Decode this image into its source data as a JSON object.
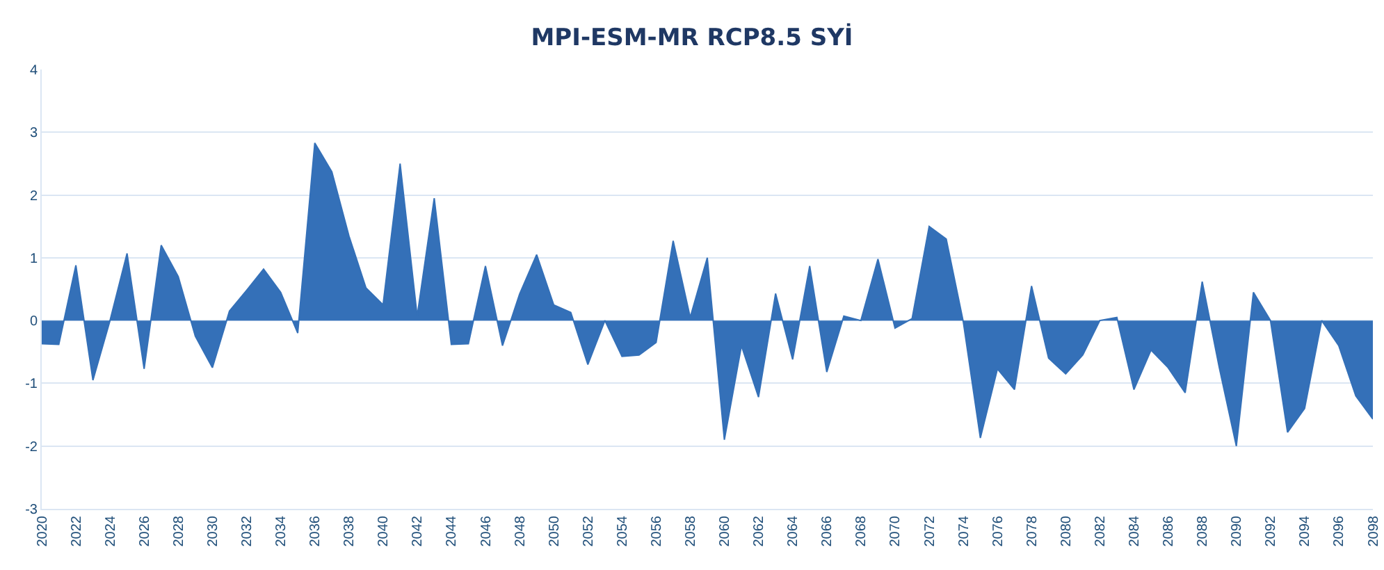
{
  "chart_data": {
    "type": "area",
    "title": "MPI-ESM-MR RCP8.5 SYİ",
    "x": [
      2020,
      2021,
      2022,
      2023,
      2024,
      2025,
      2026,
      2027,
      2028,
      2029,
      2030,
      2031,
      2032,
      2033,
      2034,
      2035,
      2036,
      2037,
      2038,
      2039,
      2040,
      2041,
      2042,
      2043,
      2044,
      2045,
      2046,
      2047,
      2048,
      2049,
      2050,
      2051,
      2052,
      2053,
      2054,
      2055,
      2056,
      2057,
      2058,
      2059,
      2060,
      2061,
      2062,
      2063,
      2064,
      2065,
      2066,
      2067,
      2068,
      2069,
      2070,
      2071,
      2072,
      2073,
      2074,
      2075,
      2076,
      2077,
      2078,
      2079,
      2080,
      2081,
      2082,
      2083,
      2084,
      2085,
      2086,
      2087,
      2088,
      2089,
      2090,
      2091,
      2092,
      2093,
      2094,
      2095,
      2096,
      2097,
      2098
    ],
    "series": [
      {
        "color": "#3470b8",
        "values": [
          -0.37,
          -0.38,
          0.88,
          -0.95,
          0.0,
          1.07,
          -0.77,
          1.2,
          0.7,
          -0.25,
          -0.75,
          0.15,
          0.48,
          0.82,
          0.45,
          -0.2,
          2.83,
          2.37,
          1.35,
          0.52,
          0.25,
          2.5,
          0.07,
          1.95,
          -0.38,
          -0.37,
          0.87,
          -0.4,
          0.42,
          1.05,
          0.25,
          0.13,
          -0.7,
          0.0,
          -0.57,
          -0.55,
          -0.35,
          1.27,
          0.05,
          1.0,
          -1.9,
          -0.4,
          -1.22,
          0.43,
          -0.62,
          0.87,
          -0.82,
          0.07,
          0.0,
          0.98,
          -0.12,
          0.03,
          1.5,
          1.3,
          -0.02,
          -1.87,
          -0.77,
          -1.1,
          0.55,
          -0.6,
          -0.85,
          -0.55,
          0.0,
          0.05,
          -1.1,
          -0.47,
          -0.75,
          -1.15,
          0.62,
          -0.75,
          -2.0,
          0.45,
          0.0,
          -1.78,
          -1.4,
          0.0,
          -0.4,
          -1.2,
          -1.57
        ]
      }
    ],
    "xlim": [
      2020,
      2098
    ],
    "xticks": [
      2020,
      2022,
      2024,
      2026,
      2028,
      2030,
      2032,
      2034,
      2036,
      2038,
      2040,
      2042,
      2044,
      2046,
      2048,
      2050,
      2052,
      2054,
      2056,
      2058,
      2060,
      2062,
      2064,
      2066,
      2068,
      2070,
      2072,
      2074,
      2076,
      2078,
      2080,
      2082,
      2084,
      2086,
      2088,
      2090,
      2092,
      2094,
      2096,
      2098
    ],
    "ylim": [
      -3,
      4
    ],
    "yticks": [
      -3,
      -2,
      -1,
      0,
      1,
      2,
      3,
      4
    ],
    "grid": "y"
  }
}
